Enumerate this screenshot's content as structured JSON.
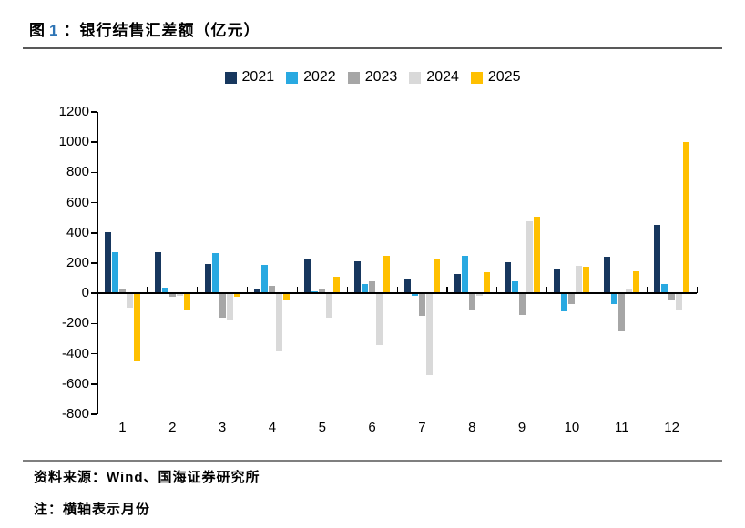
{
  "figure": {
    "label": "图",
    "number": "1",
    "colon": "：",
    "title": "银行结售汇差额（亿元）"
  },
  "chart_data": {
    "type": "bar",
    "title": "银行结售汇差额（亿元）",
    "categories": [
      "1",
      "2",
      "3",
      "4",
      "5",
      "6",
      "7",
      "8",
      "9",
      "10",
      "11",
      "12"
    ],
    "series": [
      {
        "name": "2021",
        "color": "#17375E",
        "values": [
          405,
          275,
          195,
          25,
          230,
          215,
          90,
          130,
          205,
          160,
          240,
          455
        ]
      },
      {
        "name": "2022",
        "color": "#29A9E1",
        "values": [
          275,
          40,
          265,
          185,
          15,
          60,
          -15,
          250,
          80,
          -120,
          -70,
          60
        ]
      },
      {
        "name": "2023",
        "color": "#A6A6A6",
        "values": [
          25,
          -20,
          -160,
          50,
          30,
          80,
          -150,
          -110,
          -145,
          -70,
          -250,
          -40
        ]
      },
      {
        "name": "2024",
        "color": "#D9D9D9",
        "values": [
          -95,
          -15,
          -175,
          -385,
          -160,
          -345,
          -540,
          -15,
          475,
          180,
          30,
          -105
        ]
      },
      {
        "name": "2025",
        "color": "#FFC000",
        "values": [
          -450,
          -105,
          -20,
          -45,
          110,
          250,
          225,
          140,
          505,
          175,
          145,
          1000
        ]
      }
    ],
    "ylim": [
      -800,
      1200
    ],
    "ytick_step": 200,
    "grid": false,
    "legend_position": "top",
    "xlabel": "",
    "ylabel": ""
  },
  "footer": {
    "source": "资料来源：Wind、国海证券研究所",
    "note": "注：横轴表示月份"
  }
}
